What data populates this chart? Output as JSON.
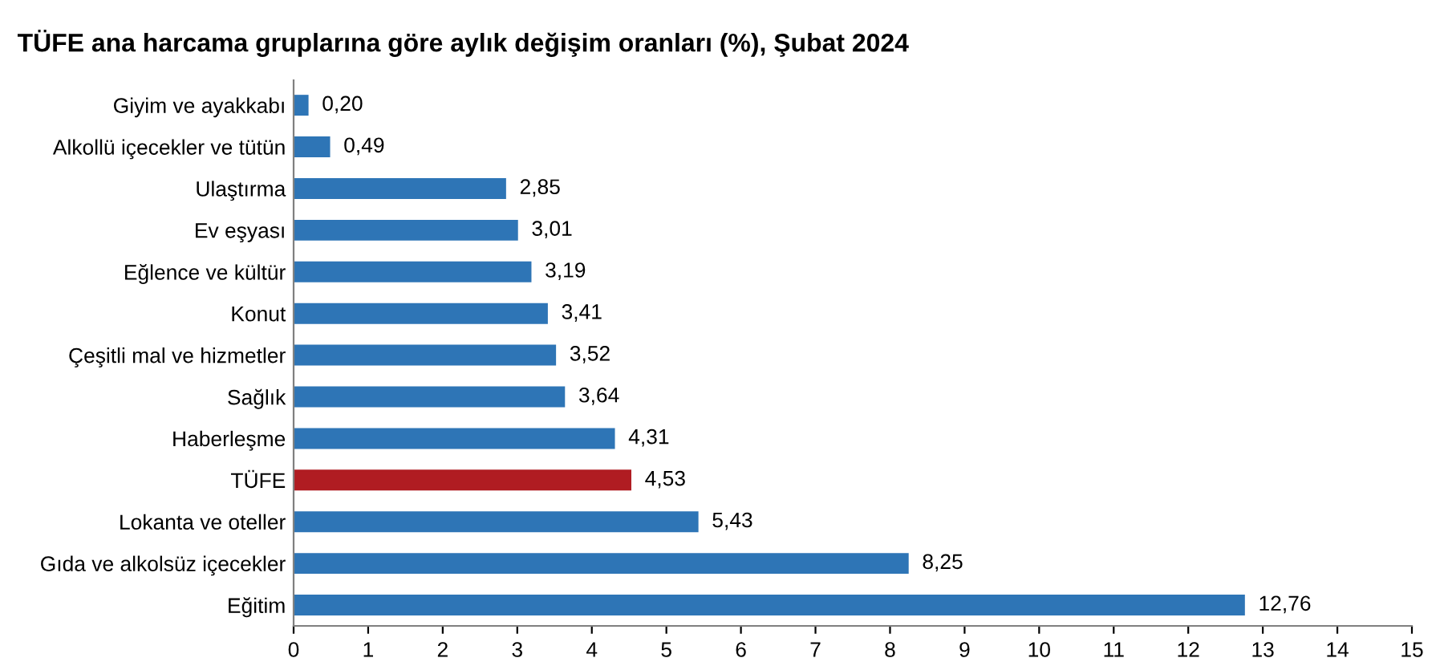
{
  "chart_data": {
    "type": "bar",
    "orientation": "horizontal",
    "title": "TÜFE ana harcama gruplarına göre aylık değişim oranları (%), Şubat 2024",
    "categories": [
      "Giyim ve ayakkabı",
      "Alkollü içecekler ve tütün",
      "Ulaştırma",
      "Ev eşyası",
      "Eğlence ve kültür",
      "Konut",
      "Çeşitli mal ve hizmetler",
      "Sağlık",
      "Haberleşme",
      "TÜFE",
      "Lokanta ve oteller",
      "Gıda ve alkolsüz içecekler",
      "Eğitim"
    ],
    "values": [
      0.2,
      0.49,
      2.85,
      3.01,
      3.19,
      3.41,
      3.52,
      3.64,
      4.31,
      4.53,
      5.43,
      8.25,
      12.76
    ],
    "value_labels": [
      "0,20",
      "0,49",
      "2,85",
      "3,01",
      "3,19",
      "3,41",
      "3,52",
      "3,64",
      "4,31",
      "4,53",
      "5,43",
      "8,25",
      "12,76"
    ],
    "colors": [
      "#2e75b6",
      "#2e75b6",
      "#2e75b6",
      "#2e75b6",
      "#2e75b6",
      "#2e75b6",
      "#2e75b6",
      "#2e75b6",
      "#2e75b6",
      "#b01c22",
      "#2e75b6",
      "#2e75b6",
      "#2e75b6"
    ],
    "xlim": [
      0,
      15
    ],
    "xticks": [
      0,
      1,
      2,
      3,
      4,
      5,
      6,
      7,
      8,
      9,
      10,
      11,
      12,
      13,
      14,
      15
    ],
    "grid": false,
    "legend": false
  }
}
